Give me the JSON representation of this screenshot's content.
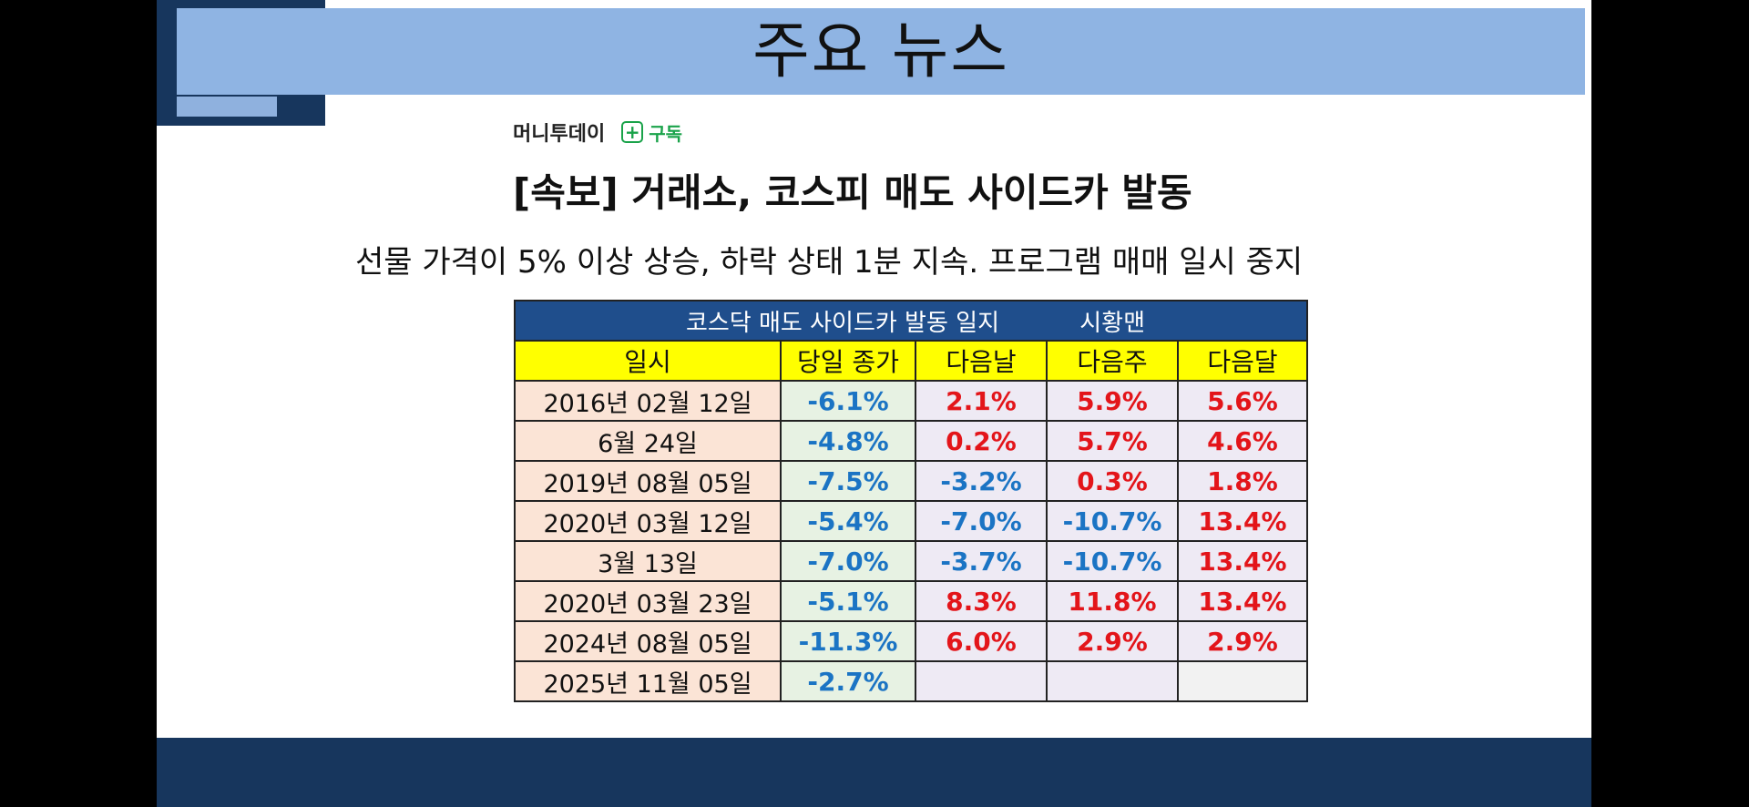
{
  "slide": {
    "title": "주요 뉴스"
  },
  "article": {
    "source": "머니투데이",
    "subscribe_label": "구독",
    "headline": "[속보] 거래소, 코스피 매도 사이드카 발동",
    "subline": "선물 가격이 5% 이상 상승, 하락 상태 1분 지속. 프로그램 매매 일시 중지"
  },
  "table": {
    "title": "코스닥 매도 사이드카 발동 일지",
    "author": "시황맨",
    "headers": [
      "일시",
      "당일 종가",
      "다음날",
      "다음주",
      "다음달"
    ],
    "rows": [
      {
        "date": "2016년 02월 12일",
        "c1": "-6.1%",
        "c2": "2.1%",
        "c3": "5.9%",
        "c4": "5.6%"
      },
      {
        "date": "6월 24일",
        "c1": "-4.8%",
        "c2": "0.2%",
        "c3": "5.7%",
        "c4": "4.6%"
      },
      {
        "date": "2019년 08월 05일",
        "c1": "-7.5%",
        "c2": "-3.2%",
        "c3": "0.3%",
        "c4": "1.8%"
      },
      {
        "date": "2020년 03월 12일",
        "c1": "-5.4%",
        "c2": "-7.0%",
        "c3": "-10.7%",
        "c4": "13.4%"
      },
      {
        "date": "3월 13일",
        "c1": "-7.0%",
        "c2": "-3.7%",
        "c3": "-10.7%",
        "c4": "13.4%"
      },
      {
        "date": "2020년 03월 23일",
        "c1": "-5.1%",
        "c2": "8.3%",
        "c3": "11.8%",
        "c4": "13.4%"
      },
      {
        "date": "2024년 08월 05일",
        "c1": "-11.3%",
        "c2": "6.0%",
        "c3": "2.9%",
        "c4": "2.9%"
      },
      {
        "date": "2025년 11월 05일",
        "c1": "-2.7%",
        "c2": "",
        "c3": "",
        "c4": ""
      }
    ]
  },
  "colors": {
    "title_bar": "#8fb4e3",
    "footer": "#17365d",
    "header_yellow": "#ffff00",
    "table_title": "#1f4e8c",
    "negative": "#1b74c4",
    "positive": "#e3151a",
    "subscribe_green": "#1aa34a"
  },
  "icons": {
    "subscribe": "plus-icon"
  }
}
